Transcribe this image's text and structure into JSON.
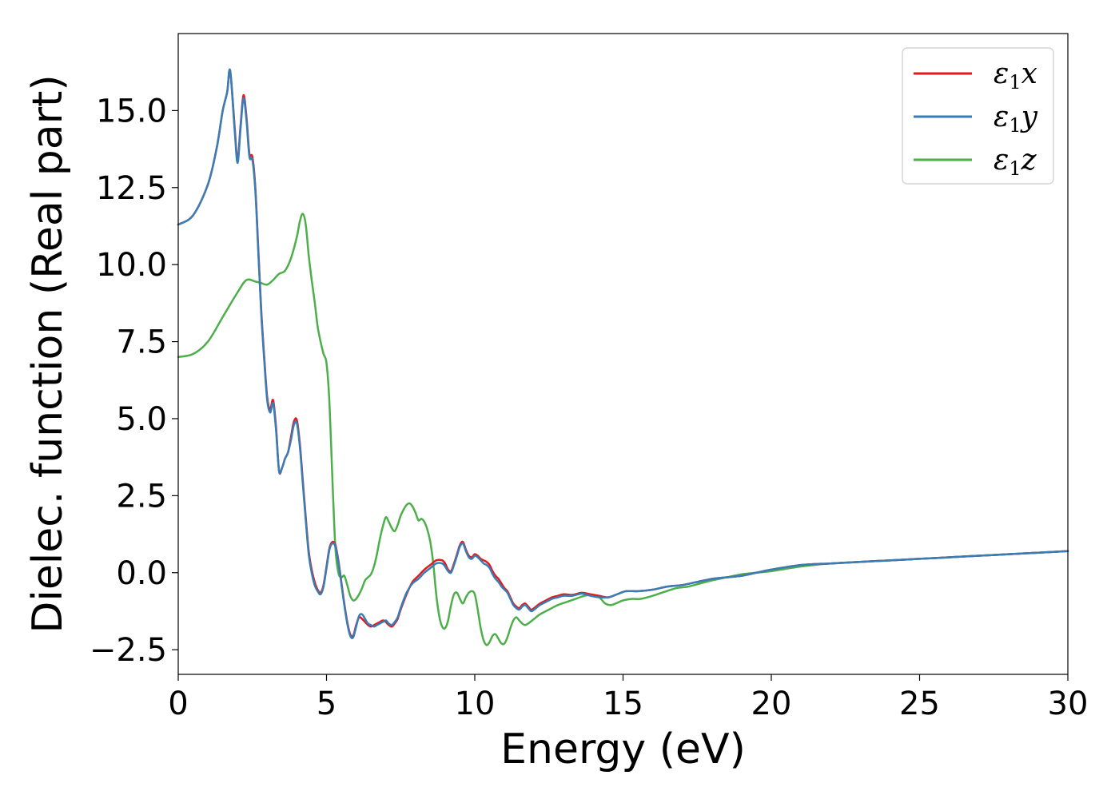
{
  "chart_data": {
    "type": "line",
    "xlabel": "Energy (eV)",
    "ylabel": "Dielec. function (Real part)",
    "xlim": [
      0,
      30
    ],
    "ylim": [
      -3.3,
      17.5
    ],
    "xticks": [
      0,
      5,
      10,
      15,
      20,
      25,
      30
    ],
    "xtick_labels": [
      "0",
      "5",
      "10",
      "15",
      "20",
      "25",
      "30"
    ],
    "yticks": [
      -2.5,
      0.0,
      2.5,
      5.0,
      7.5,
      10.0,
      12.5,
      15.0
    ],
    "ytick_labels": [
      "−2.5",
      "0.0",
      "2.5",
      "5.0",
      "7.5",
      "10.0",
      "12.5",
      "15.0"
    ],
    "grid": false,
    "legend_position": "top-right",
    "series": [
      {
        "name": "ε₁x",
        "legend_base": "ε",
        "legend_sub": "1",
        "legend_suffix": "x",
        "color": "#e41a1c",
        "x": [
          0,
          0.5,
          1.0,
          1.3,
          1.5,
          1.65,
          1.75,
          1.9,
          2.0,
          2.1,
          2.2,
          2.3,
          2.4,
          2.5,
          2.6,
          2.7,
          2.8,
          2.9,
          3.0,
          3.1,
          3.2,
          3.3,
          3.4,
          3.5,
          3.6,
          3.7,
          3.8,
          3.9,
          4.0,
          4.1,
          4.2,
          4.3,
          4.4,
          4.5,
          4.6,
          4.7,
          4.8,
          4.9,
          5.0,
          5.1,
          5.2,
          5.3,
          5.4,
          5.5,
          5.6,
          5.7,
          5.8,
          5.9,
          6.0,
          6.1,
          6.2,
          6.3,
          6.4,
          6.5,
          6.6,
          6.7,
          6.8,
          6.9,
          7.0,
          7.1,
          7.2,
          7.3,
          7.4,
          7.5,
          7.7,
          7.9,
          8.1,
          8.3,
          8.5,
          8.7,
          8.9,
          9.0,
          9.1,
          9.2,
          9.3,
          9.4,
          9.5,
          9.6,
          9.7,
          9.8,
          9.9,
          10.0,
          10.1,
          10.2,
          10.3,
          10.4,
          10.5,
          10.6,
          10.7,
          10.8,
          10.9,
          11.0,
          11.1,
          11.2,
          11.3,
          11.4,
          11.5,
          11.6,
          11.7,
          11.8,
          11.9,
          12.0,
          12.2,
          12.4,
          12.6,
          12.8,
          13.0,
          13.3,
          13.6,
          13.9,
          14.2,
          14.5,
          14.8,
          15.1,
          15.5,
          16.0,
          16.5,
          17.0,
          17.5,
          18.0,
          18.5,
          19.0,
          19.5,
          20.0,
          21.0,
          22.0,
          23.0,
          24.0,
          25.0,
          26.0,
          27.0,
          28.0,
          29.0,
          30.0
        ],
        "values": [
          11.3,
          11.6,
          12.6,
          13.8,
          15.0,
          15.6,
          16.3,
          14.5,
          13.4,
          14.5,
          15.5,
          14.8,
          13.6,
          13.5,
          12.5,
          10.5,
          8.5,
          7.0,
          5.7,
          5.3,
          5.6,
          4.7,
          3.3,
          3.4,
          3.7,
          3.9,
          4.4,
          4.9,
          4.95,
          4.2,
          3.0,
          1.8,
          0.7,
          0.1,
          -0.3,
          -0.55,
          -0.65,
          -0.4,
          0.2,
          0.8,
          1.0,
          0.9,
          0.4,
          -0.3,
          -1.0,
          -1.6,
          -2.0,
          -2.05,
          -1.7,
          -1.45,
          -1.5,
          -1.6,
          -1.7,
          -1.75,
          -1.7,
          -1.65,
          -1.6,
          -1.55,
          -1.6,
          -1.7,
          -1.75,
          -1.65,
          -1.5,
          -1.2,
          -0.7,
          -0.3,
          -0.1,
          0.1,
          0.25,
          0.4,
          0.4,
          0.3,
          0.1,
          0.05,
          0.3,
          0.6,
          0.9,
          1.0,
          0.75,
          0.55,
          0.5,
          0.6,
          0.55,
          0.45,
          0.4,
          0.35,
          0.25,
          0.05,
          -0.1,
          -0.2,
          -0.35,
          -0.5,
          -0.6,
          -0.8,
          -1.0,
          -1.1,
          -1.15,
          -1.05,
          -1.0,
          -1.1,
          -1.2,
          -1.15,
          -1.0,
          -0.9,
          -0.8,
          -0.75,
          -0.7,
          -0.72,
          -0.65,
          -0.7,
          -0.75,
          -0.8,
          -0.7,
          -0.6,
          -0.6,
          -0.55,
          -0.45,
          -0.4,
          -0.3,
          -0.2,
          -0.15,
          -0.1,
          0.0,
          0.1,
          0.25,
          0.3,
          0.35,
          0.4,
          0.45,
          0.5,
          0.55,
          0.6,
          0.65,
          0.7
        ]
      },
      {
        "name": "ε₁y",
        "legend_base": "ε",
        "legend_sub": "1",
        "legend_suffix": "y",
        "color": "#377eb8",
        "x": [
          0,
          0.5,
          1.0,
          1.3,
          1.5,
          1.65,
          1.75,
          1.9,
          2.0,
          2.1,
          2.2,
          2.3,
          2.4,
          2.5,
          2.6,
          2.7,
          2.8,
          2.9,
          3.0,
          3.1,
          3.2,
          3.3,
          3.4,
          3.5,
          3.6,
          3.7,
          3.8,
          3.9,
          4.0,
          4.1,
          4.2,
          4.3,
          4.4,
          4.5,
          4.6,
          4.7,
          4.8,
          4.9,
          5.0,
          5.1,
          5.2,
          5.3,
          5.4,
          5.5,
          5.6,
          5.7,
          5.8,
          5.9,
          6.0,
          6.1,
          6.2,
          6.3,
          6.4,
          6.5,
          6.6,
          6.7,
          6.8,
          6.9,
          7.0,
          7.1,
          7.2,
          7.3,
          7.4,
          7.5,
          7.7,
          7.9,
          8.1,
          8.3,
          8.5,
          8.7,
          8.9,
          9.0,
          9.1,
          9.2,
          9.3,
          9.4,
          9.5,
          9.6,
          9.7,
          9.8,
          9.9,
          10.0,
          10.1,
          10.2,
          10.3,
          10.4,
          10.5,
          10.6,
          10.7,
          10.8,
          10.9,
          11.0,
          11.1,
          11.2,
          11.3,
          11.4,
          11.5,
          11.6,
          11.7,
          11.8,
          11.9,
          12.0,
          12.2,
          12.4,
          12.6,
          12.8,
          13.0,
          13.3,
          13.6,
          13.9,
          14.2,
          14.5,
          14.8,
          15.1,
          15.5,
          16.0,
          16.5,
          17.0,
          17.5,
          18.0,
          18.5,
          19.0,
          19.5,
          20.0,
          21.0,
          22.0,
          23.0,
          24.0,
          25.0,
          26.0,
          27.0,
          28.0,
          29.0,
          30.0
        ],
        "values": [
          11.3,
          11.6,
          12.6,
          13.8,
          15.0,
          15.6,
          16.3,
          14.4,
          13.3,
          14.4,
          15.4,
          14.7,
          13.5,
          13.4,
          12.4,
          10.4,
          8.4,
          6.9,
          5.6,
          5.2,
          5.5,
          4.6,
          3.3,
          3.4,
          3.7,
          3.9,
          4.3,
          4.8,
          4.85,
          4.1,
          2.9,
          1.7,
          0.6,
          0.0,
          -0.4,
          -0.6,
          -0.7,
          -0.45,
          0.15,
          0.75,
          0.95,
          0.85,
          0.35,
          -0.35,
          -1.05,
          -1.65,
          -2.05,
          -2.1,
          -1.75,
          -1.4,
          -1.35,
          -1.5,
          -1.65,
          -1.7,
          -1.75,
          -1.7,
          -1.65,
          -1.6,
          -1.55,
          -1.65,
          -1.7,
          -1.6,
          -1.45,
          -1.15,
          -0.65,
          -0.35,
          -0.2,
          0.0,
          0.15,
          0.3,
          0.3,
          0.2,
          0.05,
          0.0,
          0.25,
          0.55,
          0.85,
          0.95,
          0.7,
          0.5,
          0.45,
          0.55,
          0.5,
          0.4,
          0.3,
          0.25,
          0.15,
          -0.05,
          -0.2,
          -0.3,
          -0.45,
          -0.55,
          -0.65,
          -0.85,
          -1.05,
          -1.15,
          -1.2,
          -1.1,
          -1.05,
          -1.15,
          -1.25,
          -1.2,
          -1.05,
          -0.95,
          -0.85,
          -0.8,
          -0.75,
          -0.75,
          -0.68,
          -0.75,
          -0.8,
          -0.8,
          -0.7,
          -0.6,
          -0.6,
          -0.55,
          -0.45,
          -0.4,
          -0.3,
          -0.2,
          -0.15,
          -0.1,
          0.0,
          0.1,
          0.25,
          0.3,
          0.35,
          0.4,
          0.45,
          0.5,
          0.55,
          0.6,
          0.65,
          0.7
        ]
      },
      {
        "name": "ε₁z",
        "legend_base": "ε",
        "legend_sub": "1",
        "legend_suffix": "z",
        "color": "#4daf4a",
        "x": [
          0,
          0.5,
          1.0,
          1.5,
          2.0,
          2.3,
          2.6,
          2.8,
          3.0,
          3.2,
          3.4,
          3.6,
          3.8,
          4.0,
          4.1,
          4.2,
          4.3,
          4.4,
          4.5,
          4.6,
          4.7,
          4.8,
          4.9,
          5.0,
          5.1,
          5.2,
          5.3,
          5.4,
          5.5,
          5.6,
          5.7,
          5.8,
          5.9,
          6.0,
          6.1,
          6.2,
          6.3,
          6.4,
          6.5,
          6.6,
          6.7,
          6.8,
          6.9,
          7.0,
          7.1,
          7.2,
          7.3,
          7.4,
          7.5,
          7.6,
          7.7,
          7.8,
          7.9,
          8.0,
          8.1,
          8.2,
          8.3,
          8.4,
          8.5,
          8.6,
          8.7,
          8.8,
          8.9,
          9.0,
          9.1,
          9.2,
          9.3,
          9.4,
          9.5,
          9.6,
          9.7,
          9.8,
          9.9,
          10.0,
          10.1,
          10.2,
          10.3,
          10.4,
          10.5,
          10.6,
          10.7,
          10.8,
          10.9,
          11.0,
          11.1,
          11.2,
          11.3,
          11.4,
          11.5,
          11.6,
          11.7,
          11.8,
          12.0,
          12.2,
          12.5,
          12.8,
          13.1,
          13.4,
          13.7,
          14.0,
          14.2,
          14.4,
          14.6,
          14.8,
          15.0,
          15.3,
          15.6,
          16.0,
          16.4,
          16.8,
          17.2,
          17.6,
          18.0,
          18.5,
          19.0,
          19.5,
          20.0,
          21.0,
          22.0,
          23.0,
          24.0,
          25.0,
          26.0,
          27.0,
          28.0,
          29.0,
          30.0
        ],
        "values": [
          7.0,
          7.1,
          7.5,
          8.3,
          9.1,
          9.5,
          9.45,
          9.4,
          9.35,
          9.5,
          9.7,
          9.8,
          10.2,
          10.9,
          11.4,
          11.65,
          11.3,
          10.3,
          9.5,
          8.8,
          8.0,
          7.5,
          7.1,
          6.8,
          5.5,
          3.0,
          0.8,
          0.0,
          -0.15,
          -0.1,
          -0.4,
          -0.75,
          -0.9,
          -0.85,
          -0.7,
          -0.5,
          -0.25,
          -0.15,
          -0.05,
          0.2,
          0.6,
          1.1,
          1.5,
          1.8,
          1.65,
          1.45,
          1.35,
          1.55,
          1.85,
          2.05,
          2.2,
          2.25,
          2.15,
          1.95,
          1.7,
          1.75,
          1.65,
          1.4,
          1.0,
          0.3,
          -0.7,
          -1.4,
          -1.75,
          -1.8,
          -1.55,
          -1.05,
          -0.7,
          -0.65,
          -0.85,
          -1.0,
          -0.8,
          -0.65,
          -0.6,
          -0.7,
          -1.2,
          -1.8,
          -2.2,
          -2.35,
          -2.25,
          -2.05,
          -2.0,
          -2.15,
          -2.3,
          -2.3,
          -2.1,
          -1.8,
          -1.55,
          -1.45,
          -1.55,
          -1.65,
          -1.7,
          -1.65,
          -1.5,
          -1.35,
          -1.2,
          -1.05,
          -0.95,
          -0.85,
          -0.75,
          -0.72,
          -0.8,
          -1.0,
          -1.05,
          -0.98,
          -0.9,
          -0.85,
          -0.85,
          -0.75,
          -0.62,
          -0.5,
          -0.45,
          -0.35,
          -0.25,
          -0.15,
          -0.05,
          0.0,
          0.05,
          0.2,
          0.3,
          0.35,
          0.4,
          0.45,
          0.5,
          0.55,
          0.6,
          0.65,
          0.7
        ]
      }
    ]
  }
}
